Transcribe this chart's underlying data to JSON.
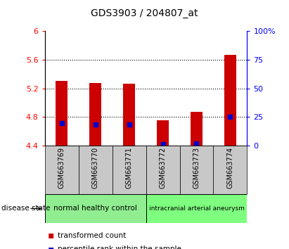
{
  "title": "GDS3903 / 204807_at",
  "samples": [
    "GSM663769",
    "GSM663770",
    "GSM663771",
    "GSM663772",
    "GSM663773",
    "GSM663774"
  ],
  "bar_values": [
    5.3,
    5.28,
    5.27,
    4.75,
    4.87,
    5.67
  ],
  "bar_bottom": 4.4,
  "percentile_values": [
    4.72,
    4.7,
    4.7,
    4.42,
    4.43,
    4.8
  ],
  "ylim_left": [
    4.4,
    6.0
  ],
  "ylim_right": [
    0,
    100
  ],
  "yticks_left": [
    4.4,
    4.8,
    5.2,
    5.6,
    6.0
  ],
  "ytick_labels_left": [
    "4.4",
    "4.8",
    "5.2",
    "5.6",
    "6"
  ],
  "yticks_right": [
    0,
    25,
    50,
    75,
    100
  ],
  "ytick_labels_right": [
    "0",
    "25",
    "50",
    "75",
    "100%"
  ],
  "bar_color": "#cc0000",
  "percentile_color": "#0000cc",
  "group1_label": "normal healthy control",
  "group2_label": "intracranial arterial aneurysm",
  "group1_color": "#90ee90",
  "group2_color": "#7fff7f",
  "disease_state_label": "disease state",
  "legend_items": [
    "transformed count",
    "percentile rank within the sample"
  ],
  "legend_colors": [
    "#cc0000",
    "#0000cc"
  ],
  "tick_area_color": "#c8c8c8",
  "bar_width": 0.35,
  "grid_values": [
    4.8,
    5.2,
    5.6
  ],
  "fig_bg": "#ffffff"
}
